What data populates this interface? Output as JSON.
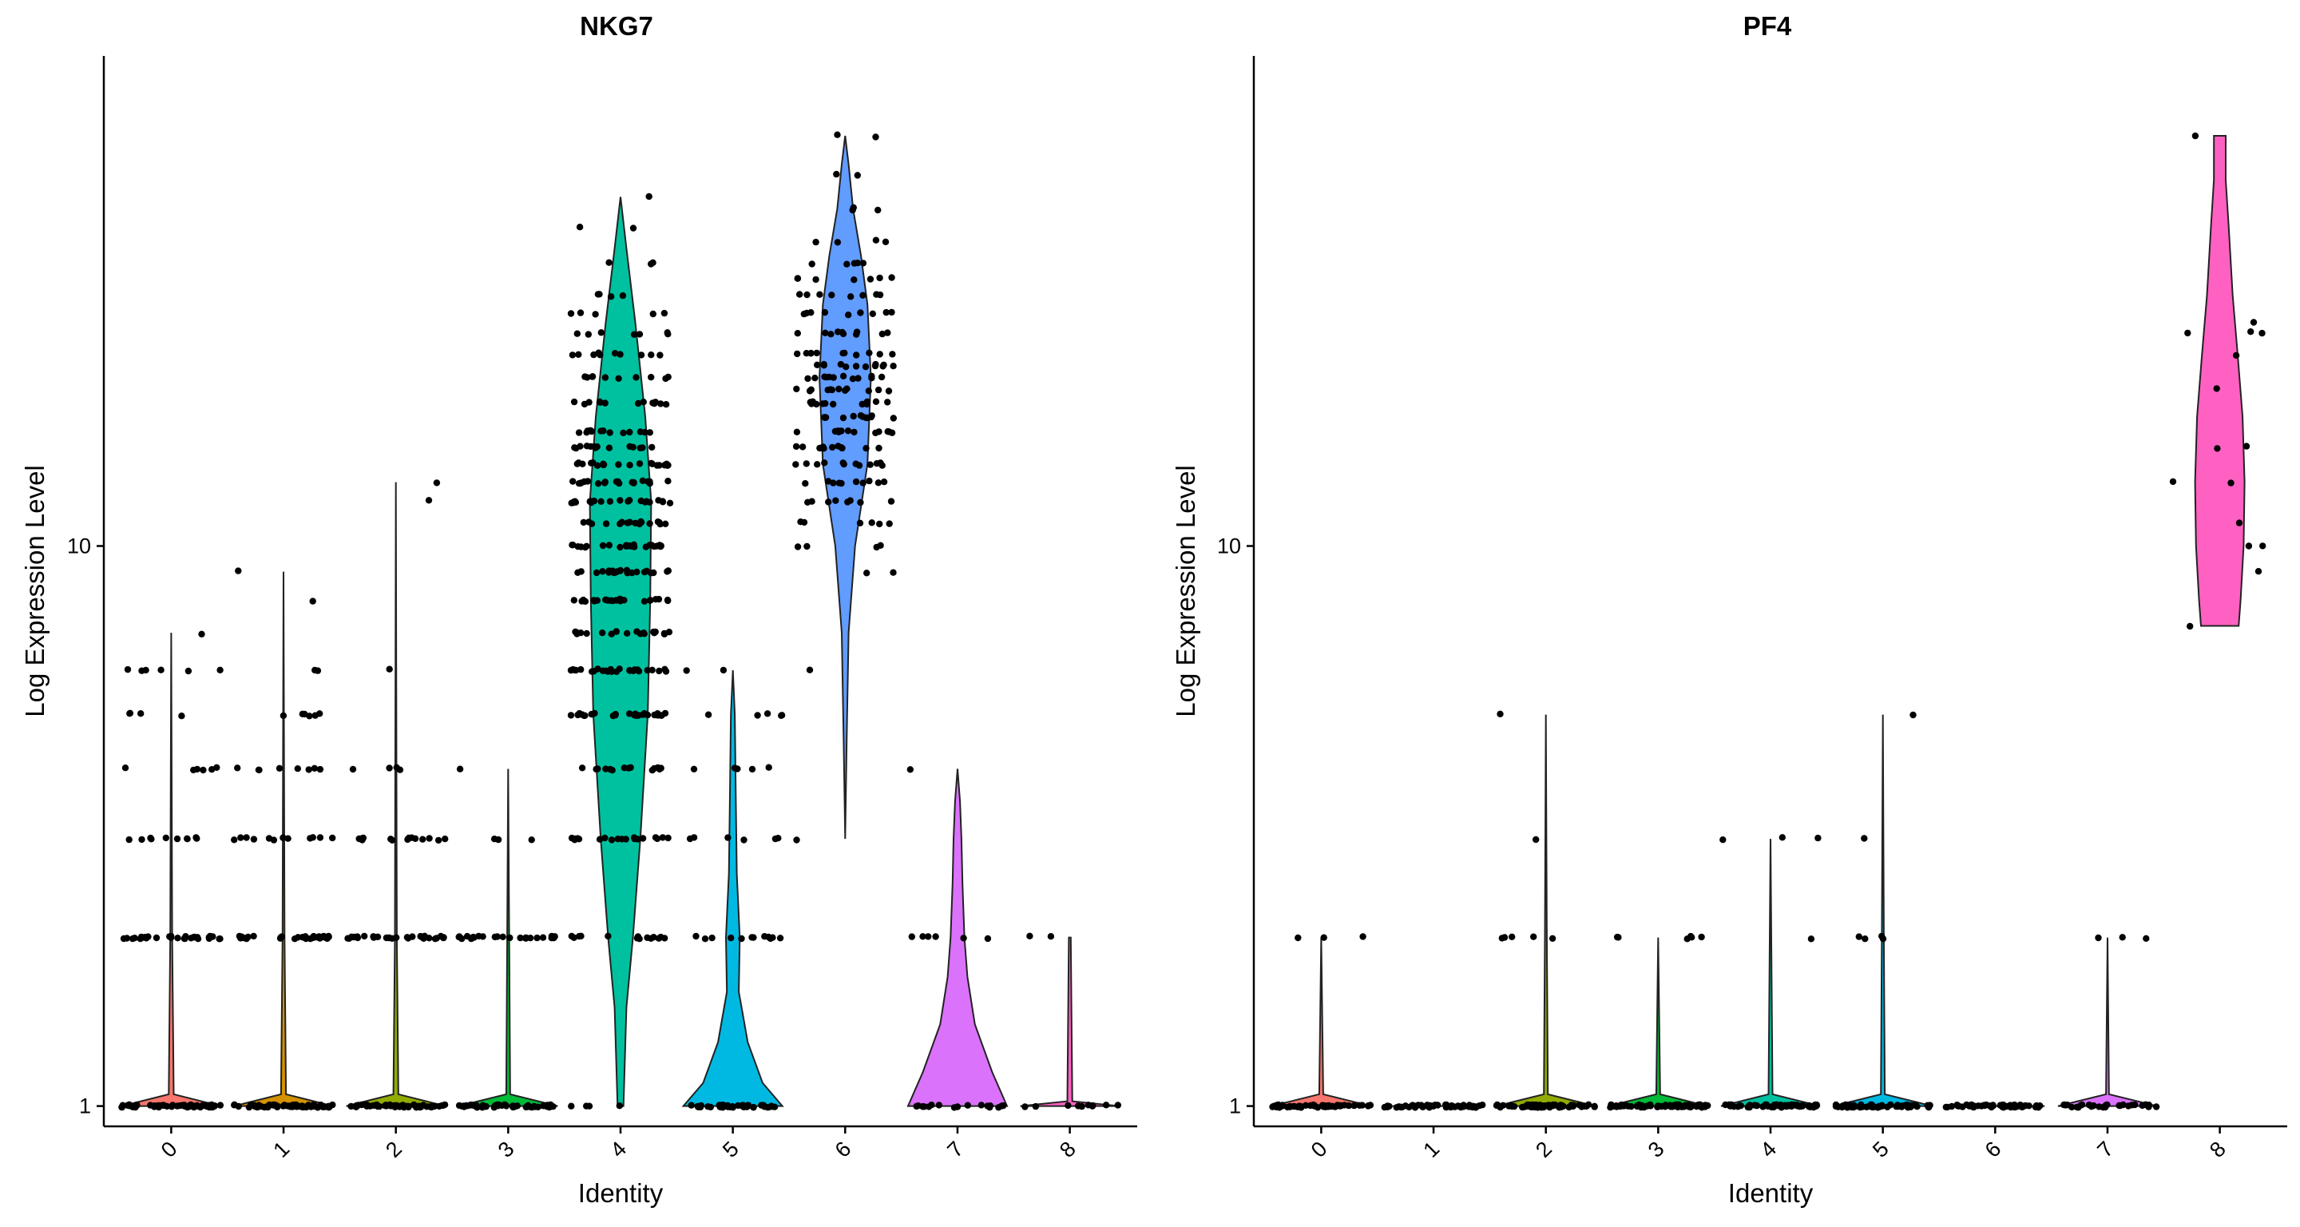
{
  "figure": {
    "xlabel": "Identity",
    "ylabel": "Log Expression Level"
  },
  "colors": {
    "0": "#F8766D",
    "1": "#D39200",
    "2": "#93AA00",
    "3": "#00BA38",
    "4": "#00C19F",
    "5": "#00B9E3",
    "6": "#619CFF",
    "7": "#DB72FB",
    "8": "#FF61C3"
  },
  "chart_data": [
    {
      "type": "violin",
      "title": "NKG7",
      "xlabel": "Identity",
      "ylabel": "Log Expression Level",
      "y_scale": "log",
      "ylim": [
        0.92,
        75
      ],
      "yticks": [
        1,
        10
      ],
      "categories": [
        "0",
        "1",
        "2",
        "3",
        "4",
        "5",
        "6",
        "7",
        "8"
      ],
      "groups": [
        {
          "id": "0",
          "max": 7,
          "profile": [
            [
              1,
              1
            ],
            [
              1.05,
              0.05
            ],
            [
              2,
              0.02
            ],
            [
              7,
              0
            ]
          ],
          "levels": [
            [
              1,
              60
            ],
            [
              2,
              30
            ],
            [
              3,
              10
            ],
            [
              4,
              6
            ],
            [
              5,
              4
            ],
            [
              6,
              6
            ],
            [
              7,
              1
            ]
          ]
        },
        {
          "id": "1",
          "max": 9,
          "profile": [
            [
              1,
              1
            ],
            [
              1.05,
              0.05
            ],
            [
              2,
              0.02
            ],
            [
              9,
              0
            ]
          ],
          "levels": [
            [
              1,
              60
            ],
            [
              2,
              30
            ],
            [
              3,
              12
            ],
            [
              4,
              8
            ],
            [
              5,
              6
            ],
            [
              6,
              2
            ],
            [
              8,
              1
            ],
            [
              9,
              1
            ]
          ]
        },
        {
          "id": "2",
          "max": 13,
          "profile": [
            [
              1,
              1
            ],
            [
              1.05,
              0.05
            ],
            [
              2,
              0.02
            ],
            [
              13,
              0
            ]
          ],
          "levels": [
            [
              1,
              60
            ],
            [
              2,
              30
            ],
            [
              3,
              14
            ],
            [
              4,
              4
            ],
            [
              6,
              1
            ],
            [
              12,
              1
            ],
            [
              13,
              1
            ]
          ]
        },
        {
          "id": "3",
          "max": 4,
          "profile": [
            [
              1,
              1
            ],
            [
              1.05,
              0.04
            ],
            [
              2,
              0.02
            ],
            [
              4,
              0
            ]
          ],
          "levels": [
            [
              1,
              50
            ],
            [
              2,
              25
            ],
            [
              3,
              3
            ],
            [
              4,
              1
            ]
          ]
        },
        {
          "id": "4",
          "max": 42,
          "profile": [
            [
              1,
              0.06
            ],
            [
              1.5,
              0.12
            ],
            [
              2,
              0.25
            ],
            [
              3,
              0.4
            ],
            [
              5,
              0.55
            ],
            [
              8,
              0.6
            ],
            [
              12,
              0.62
            ],
            [
              17,
              0.5
            ],
            [
              25,
              0.3
            ],
            [
              34,
              0.12
            ],
            [
              42,
              0
            ]
          ],
          "levels": [
            [
              1,
              4
            ],
            [
              2,
              14
            ],
            [
              3,
              20
            ],
            [
              4,
              14
            ],
            [
              5,
              30
            ],
            [
              6,
              26
            ],
            [
              7,
              20
            ],
            [
              8,
              24
            ],
            [
              9,
              22
            ],
            [
              10,
              24
            ],
            [
              11,
              18
            ],
            [
              12,
              22
            ],
            [
              13,
              20
            ],
            [
              14,
              20
            ],
            [
              15,
              14
            ],
            [
              16,
              14
            ],
            [
              18,
              14
            ],
            [
              20,
              10
            ],
            [
              22,
              10
            ],
            [
              24,
              7
            ],
            [
              26,
              5
            ],
            [
              28,
              4
            ],
            [
              32,
              3
            ],
            [
              37,
              2
            ],
            [
              42,
              1
            ]
          ]
        },
        {
          "id": "5",
          "max": 6,
          "profile": [
            [
              1,
              1
            ],
            [
              1.1,
              0.6
            ],
            [
              1.3,
              0.3
            ],
            [
              1.6,
              0.12
            ],
            [
              2,
              0.14
            ],
            [
              2.6,
              0.08
            ],
            [
              3.5,
              0.06
            ],
            [
              5,
              0.04
            ],
            [
              6,
              0
            ]
          ],
          "levels": [
            [
              1,
              40
            ],
            [
              2,
              12
            ],
            [
              3,
              6
            ],
            [
              4,
              5
            ],
            [
              5,
              5
            ],
            [
              6,
              2
            ]
          ]
        },
        {
          "id": "6",
          "max": 54,
          "profile": [
            [
              3,
              0
            ],
            [
              4.5,
              0.03
            ],
            [
              7,
              0.07
            ],
            [
              10,
              0.2
            ],
            [
              14,
              0.45
            ],
            [
              20,
              0.52
            ],
            [
              27,
              0.45
            ],
            [
              33,
              0.32
            ],
            [
              40,
              0.16
            ],
            [
              48,
              0.07
            ],
            [
              54,
              0
            ]
          ],
          "levels": [
            [
              3,
              1
            ],
            [
              6,
              1
            ],
            [
              9,
              2
            ],
            [
              10,
              4
            ],
            [
              11,
              6
            ],
            [
              12,
              8
            ],
            [
              13,
              10
            ],
            [
              14,
              12
            ],
            [
              15,
              12
            ],
            [
              16,
              12
            ],
            [
              17,
              12
            ],
            [
              18,
              12
            ],
            [
              19,
              12
            ],
            [
              20,
              12
            ],
            [
              21,
              12
            ],
            [
              22,
              11
            ],
            [
              24,
              10
            ],
            [
              26,
              9
            ],
            [
              28,
              8
            ],
            [
              30,
              7
            ],
            [
              32,
              5
            ],
            [
              35,
              4
            ],
            [
              40,
              3
            ],
            [
              46,
              2
            ],
            [
              54,
              2
            ]
          ]
        },
        {
          "id": "7",
          "max": 4,
          "profile": [
            [
              1,
              1
            ],
            [
              1.15,
              0.7
            ],
            [
              1.4,
              0.35
            ],
            [
              1.7,
              0.2
            ],
            [
              2,
              0.14
            ],
            [
              2.5,
              0.1
            ],
            [
              3,
              0.08
            ],
            [
              3.5,
              0.05
            ],
            [
              4,
              0
            ]
          ],
          "levels": [
            [
              1,
              18
            ],
            [
              2,
              6
            ],
            [
              4,
              1
            ]
          ]
        },
        {
          "id": "8",
          "max": 2,
          "profile": [
            [
              1,
              1
            ],
            [
              1.02,
              0.05
            ],
            [
              2,
              0.02
            ]
          ],
          "levels": [
            [
              1,
              10
            ],
            [
              2,
              2
            ]
          ]
        }
      ]
    },
    {
      "type": "violin",
      "title": "PF4",
      "xlabel": "Identity",
      "ylabel": "Log Expression Level",
      "y_scale": "log",
      "ylim": [
        0.92,
        75
      ],
      "yticks": [
        1,
        10
      ],
      "categories": [
        "0",
        "1",
        "2",
        "3",
        "4",
        "5",
        "6",
        "7",
        "8"
      ],
      "groups": [
        {
          "id": "0",
          "max": 2,
          "profile": [
            [
              1,
              1
            ],
            [
              1.05,
              0.04
            ],
            [
              2,
              0
            ]
          ],
          "levels": [
            [
              1,
              55
            ],
            [
              2,
              3
            ]
          ]
        },
        {
          "id": "1",
          "max": 1,
          "profile": [
            [
              1,
              1
            ]
          ],
          "levels": [
            [
              1,
              60
            ]
          ]
        },
        {
          "id": "2",
          "max": 5,
          "profile": [
            [
              1,
              1
            ],
            [
              1.05,
              0.04
            ],
            [
              2,
              0.02
            ],
            [
              5,
              0
            ]
          ],
          "levels": [
            [
              1,
              60
            ],
            [
              2,
              5
            ],
            [
              3,
              1
            ],
            [
              5,
              1
            ]
          ]
        },
        {
          "id": "3",
          "max": 2,
          "profile": [
            [
              1,
              1
            ],
            [
              1.05,
              0.04
            ],
            [
              2,
              0
            ]
          ],
          "levels": [
            [
              1,
              60
            ],
            [
              2,
              6
            ]
          ]
        },
        {
          "id": "4",
          "max": 3,
          "profile": [
            [
              1,
              1
            ],
            [
              1.05,
              0.04
            ],
            [
              3,
              0
            ]
          ],
          "levels": [
            [
              1,
              60
            ],
            [
              2,
              1
            ],
            [
              3,
              3
            ]
          ]
        },
        {
          "id": "5",
          "max": 5,
          "profile": [
            [
              1,
              1
            ],
            [
              1.05,
              0.04
            ],
            [
              2,
              0.02
            ],
            [
              5,
              0
            ]
          ],
          "levels": [
            [
              1,
              60
            ],
            [
              2,
              4
            ],
            [
              3,
              1
            ],
            [
              5,
              1
            ]
          ]
        },
        {
          "id": "6",
          "max": 1,
          "profile": [
            [
              1,
              1
            ]
          ],
          "levels": [
            [
              1,
              55
            ]
          ]
        },
        {
          "id": "7",
          "max": 2,
          "profile": [
            [
              1,
              1
            ],
            [
              1.05,
              0.03
            ],
            [
              2,
              0
            ]
          ],
          "levels": [
            [
              1,
              30
            ],
            [
              2,
              3
            ]
          ]
        },
        {
          "id": "8",
          "max": 54,
          "profile": [
            [
              7.2,
              0.38
            ],
            [
              8,
              0.42
            ],
            [
              10,
              0.48
            ],
            [
              13,
              0.5
            ],
            [
              17,
              0.46
            ],
            [
              22,
              0.36
            ],
            [
              28,
              0.26
            ],
            [
              37,
              0.18
            ],
            [
              45,
              0.12
            ],
            [
              54,
              0.12
            ]
          ],
          "levels": [
            [
              7.2,
              1
            ],
            [
              9,
              1
            ],
            [
              10,
              2
            ],
            [
              11,
              1
            ],
            [
              13,
              2
            ],
            [
              15,
              2
            ],
            [
              19,
              1
            ],
            [
              22,
              1
            ],
            [
              24,
              3
            ],
            [
              25,
              1
            ],
            [
              54,
              1
            ]
          ]
        }
      ]
    }
  ]
}
